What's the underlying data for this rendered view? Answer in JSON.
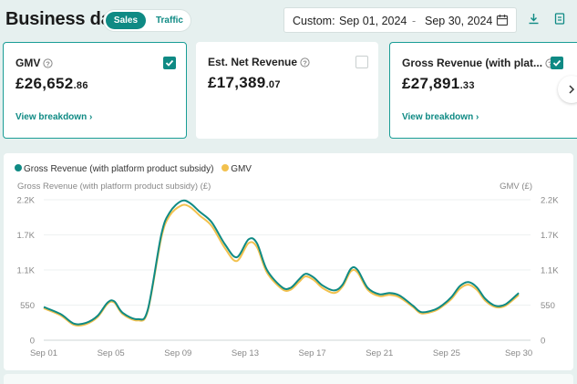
{
  "header": {
    "title": "Business data",
    "toggle": {
      "active": "Sales",
      "inactive": "Traffic"
    },
    "date_range": {
      "prefix": "Custom:",
      "start": "Sep 01, 2024",
      "separator": "-",
      "end": "Sep 30, 2024"
    }
  },
  "cards": [
    {
      "title": "GMV",
      "currency": "£",
      "value_int": "26,652",
      "value_dec": ".86",
      "link": "View breakdown ›",
      "checked": true
    },
    {
      "title": "Est. Net Revenue",
      "currency": "£",
      "value_int": "17,389",
      "value_dec": ".07",
      "checked": false
    },
    {
      "title": "Gross Revenue (with plat...",
      "currency": "£",
      "value_int": "27,891",
      "value_dec": ".33",
      "link": "View breakdown ›",
      "checked": true
    }
  ],
  "colors": {
    "teal": "#0f8a84",
    "gold": "#f2c14e"
  },
  "chart_data": {
    "type": "line",
    "legend": [
      "Gross Revenue (with platform product subsidy)",
      "GMV"
    ],
    "y_left_label": "Gross Revenue (with platform product subsidy) (£)",
    "y_right_label": "GMV (£)",
    "y_ticks": [
      "2.2K",
      "1.7K",
      "1.1K",
      "550",
      "0"
    ],
    "ylim": [
      0,
      2200
    ],
    "x_ticks": [
      "Sep 01",
      "Sep 05",
      "Sep 09",
      "Sep 13",
      "Sep 17",
      "Sep 21",
      "Sep 25",
      "Sep 30"
    ],
    "x_days": [
      1,
      30
    ],
    "series": [
      {
        "name": "Gross Revenue (with platform product subsidy)",
        "color": "#0f8a84",
        "points": [
          [
            1,
            520
          ],
          [
            2,
            410
          ],
          [
            2.8,
            260
          ],
          [
            3.5,
            270
          ],
          [
            4.2,
            380
          ],
          [
            4.8,
            590
          ],
          [
            5.2,
            610
          ],
          [
            5.7,
            430
          ],
          [
            6.6,
            330
          ],
          [
            7.2,
            480
          ],
          [
            8.0,
            1650
          ],
          [
            8.5,
            2000
          ],
          [
            9.2,
            2180
          ],
          [
            9.7,
            2150
          ],
          [
            10.3,
            2010
          ],
          [
            11.0,
            1850
          ],
          [
            11.8,
            1500
          ],
          [
            12.5,
            1300
          ],
          [
            13.2,
            1580
          ],
          [
            13.7,
            1520
          ],
          [
            14.3,
            1100
          ],
          [
            15.2,
            830
          ],
          [
            15.7,
            820
          ],
          [
            16.2,
            950
          ],
          [
            16.6,
            1040
          ],
          [
            17.1,
            980
          ],
          [
            17.6,
            860
          ],
          [
            18.3,
            780
          ],
          [
            18.8,
            870
          ],
          [
            19.3,
            1120
          ],
          [
            19.7,
            1100
          ],
          [
            20.3,
            820
          ],
          [
            21.0,
            720
          ],
          [
            21.6,
            740
          ],
          [
            22.2,
            700
          ],
          [
            23.0,
            540
          ],
          [
            23.5,
            440
          ],
          [
            24.3,
            480
          ],
          [
            24.8,
            560
          ],
          [
            25.3,
            680
          ],
          [
            25.8,
            850
          ],
          [
            26.3,
            910
          ],
          [
            26.8,
            830
          ],
          [
            27.3,
            650
          ],
          [
            27.9,
            540
          ],
          [
            28.5,
            560
          ],
          [
            29.3,
            740
          ]
        ]
      },
      {
        "name": "GMV",
        "color": "#f2c14e",
        "points": [
          [
            1,
            500
          ],
          [
            2,
            390
          ],
          [
            2.8,
            240
          ],
          [
            3.5,
            250
          ],
          [
            4.2,
            360
          ],
          [
            4.8,
            570
          ],
          [
            5.2,
            590
          ],
          [
            5.7,
            410
          ],
          [
            6.6,
            310
          ],
          [
            7.2,
            460
          ],
          [
            8.0,
            1600
          ],
          [
            8.5,
            1950
          ],
          [
            9.2,
            2110
          ],
          [
            9.7,
            2090
          ],
          [
            10.3,
            1950
          ],
          [
            11.0,
            1790
          ],
          [
            11.8,
            1440
          ],
          [
            12.5,
            1240
          ],
          [
            13.2,
            1520
          ],
          [
            13.7,
            1460
          ],
          [
            14.3,
            1060
          ],
          [
            15.2,
            800
          ],
          [
            15.7,
            790
          ],
          [
            16.2,
            910
          ],
          [
            16.6,
            1000
          ],
          [
            17.1,
            940
          ],
          [
            17.6,
            820
          ],
          [
            18.3,
            740
          ],
          [
            18.8,
            840
          ],
          [
            19.3,
            1080
          ],
          [
            19.7,
            1060
          ],
          [
            20.3,
            790
          ],
          [
            21.0,
            690
          ],
          [
            21.6,
            710
          ],
          [
            22.2,
            670
          ],
          [
            23.0,
            520
          ],
          [
            23.5,
            420
          ],
          [
            24.3,
            460
          ],
          [
            24.8,
            540
          ],
          [
            25.3,
            650
          ],
          [
            25.8,
            810
          ],
          [
            26.3,
            870
          ],
          [
            26.8,
            790
          ],
          [
            27.3,
            620
          ],
          [
            27.9,
            520
          ],
          [
            28.5,
            540
          ],
          [
            29.3,
            710
          ]
        ]
      }
    ]
  }
}
